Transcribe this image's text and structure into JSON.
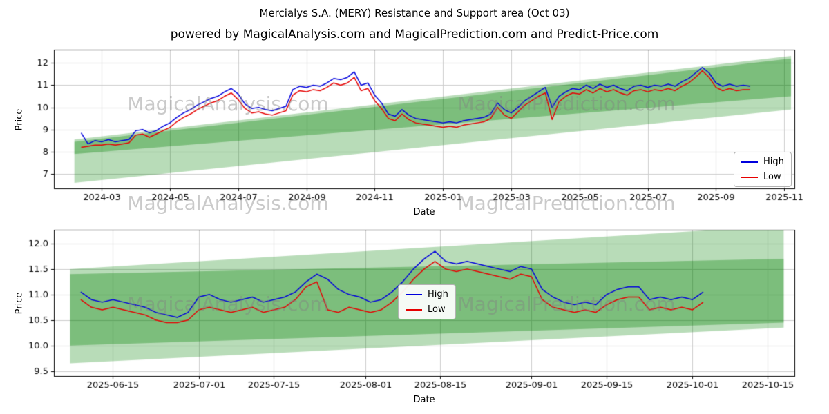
{
  "page": {
    "title": "Mercialys S.A. (MERY) Resistance and Support area (Oct 03)",
    "subtitle": "powered by MagicalAnalysis.com and MagicalPrediction.com and Predict-Price.com"
  },
  "watermarks": {
    "left": "MagicalAnalysis.com",
    "right": "MagicalPrediction.com"
  },
  "colors": {
    "high": "#0000dd",
    "low": "#e60000",
    "band": "#008000",
    "grid": "#cccccc",
    "axis": "#000000",
    "watermark": "#808080"
  },
  "chart_data": [
    {
      "type": "line",
      "title": "",
      "xlabel": "Date",
      "ylabel": "Price",
      "x_unit": "months-since-2024-01",
      "xlim": [
        0.6,
        22.3
      ],
      "ylim": [
        6.35,
        12.6
      ],
      "grid": true,
      "legend_position": "center-right",
      "yticks": [
        {
          "v": 7,
          "label": "7"
        },
        {
          "v": 8,
          "label": "8"
        },
        {
          "v": 9,
          "label": "9"
        },
        {
          "v": 10,
          "label": "10"
        },
        {
          "v": 11,
          "label": "11"
        },
        {
          "v": 12,
          "label": "12"
        }
      ],
      "xticks": [
        {
          "v": 2,
          "label": "2024-03"
        },
        {
          "v": 4,
          "label": "2024-05"
        },
        {
          "v": 6,
          "label": "2024-07"
        },
        {
          "v": 8,
          "label": "2024-09"
        },
        {
          "v": 10,
          "label": "2024-11"
        },
        {
          "v": 12,
          "label": "2025-01"
        },
        {
          "v": 14,
          "label": "2025-03"
        },
        {
          "v": 16,
          "label": "2025-05"
        },
        {
          "v": 18,
          "label": "2025-07"
        },
        {
          "v": 20,
          "label": "2025-09"
        },
        {
          "v": 22,
          "label": "2025-11"
        }
      ],
      "bands": [
        {
          "alpha": 0.28,
          "points": [
            [
              1.2,
              6.6
            ],
            [
              22.2,
              9.9
            ],
            [
              22.2,
              12.32
            ],
            [
              1.2,
              8.55
            ]
          ]
        },
        {
          "alpha": 0.33,
          "points": [
            [
              1.2,
              7.9
            ],
            [
              22.2,
              10.5
            ],
            [
              22.2,
              12.2
            ],
            [
              1.2,
              8.45
            ]
          ]
        }
      ],
      "series": [
        {
          "name": "High",
          "color": "#0000dd",
          "x0": 1.4,
          "dx": 0.2,
          "y": [
            8.85,
            8.35,
            8.5,
            8.45,
            8.55,
            8.45,
            8.5,
            8.55,
            8.95,
            9.0,
            8.85,
            8.95,
            9.15,
            9.3,
            9.55,
            9.75,
            9.9,
            10.1,
            10.25,
            10.4,
            10.5,
            10.7,
            10.85,
            10.6,
            10.15,
            9.95,
            10.0,
            9.9,
            9.85,
            9.95,
            10.05,
            10.8,
            10.95,
            10.9,
            11.0,
            10.95,
            11.1,
            11.3,
            11.25,
            11.35,
            11.6,
            11.0,
            11.1,
            10.55,
            10.2,
            9.7,
            9.6,
            9.9,
            9.65,
            9.5,
            9.45,
            9.4,
            9.35,
            9.3,
            9.35,
            9.3,
            9.4,
            9.45,
            9.5,
            9.55,
            9.7,
            10.2,
            9.9,
            9.75,
            10.0,
            10.3,
            10.5,
            10.7,
            10.9,
            10.0,
            10.5,
            10.7,
            10.85,
            10.8,
            11.0,
            10.85,
            11.05,
            10.9,
            11.0,
            10.85,
            10.75,
            10.95,
            11.0,
            10.9,
            11.0,
            10.95,
            11.05,
            10.95,
            11.15,
            11.3,
            11.55,
            11.8,
            11.55,
            11.1,
            10.95,
            11.05,
            10.95,
            11.0,
            10.95
          ]
        },
        {
          "name": "Low",
          "color": "#e60000",
          "x0": 1.4,
          "dx": 0.2,
          "y": [
            8.2,
            8.25,
            8.3,
            8.3,
            8.35,
            8.3,
            8.35,
            8.4,
            8.75,
            8.8,
            8.65,
            8.8,
            8.95,
            9.1,
            9.35,
            9.55,
            9.7,
            9.9,
            10.05,
            10.2,
            10.3,
            10.5,
            10.65,
            10.35,
            9.95,
            9.75,
            9.8,
            9.7,
            9.65,
            9.75,
            9.85,
            10.55,
            10.75,
            10.7,
            10.8,
            10.75,
            10.9,
            11.1,
            11.0,
            11.1,
            11.35,
            10.75,
            10.85,
            10.3,
            9.95,
            9.5,
            9.4,
            9.7,
            9.45,
            9.3,
            9.25,
            9.2,
            9.15,
            9.1,
            9.15,
            9.1,
            9.2,
            9.25,
            9.3,
            9.35,
            9.5,
            10.0,
            9.65,
            9.5,
            9.8,
            10.1,
            10.3,
            10.5,
            10.65,
            9.45,
            10.25,
            10.5,
            10.65,
            10.6,
            10.8,
            10.65,
            10.85,
            10.7,
            10.8,
            10.65,
            10.55,
            10.75,
            10.8,
            10.7,
            10.8,
            10.75,
            10.85,
            10.75,
            10.95,
            11.1,
            11.35,
            11.65,
            11.35,
            10.9,
            10.75,
            10.85,
            10.75,
            10.8,
            10.8
          ]
        }
      ]
    },
    {
      "type": "line",
      "title": "",
      "xlabel": "Date",
      "ylabel": "Price",
      "x_unit": "days-since-2025-06-01",
      "xlim": [
        3,
        141
      ],
      "ylim": [
        9.4,
        12.27
      ],
      "grid": true,
      "legend_position": "center",
      "yticks": [
        {
          "v": 9.5,
          "label": "9.5"
        },
        {
          "v": 10.0,
          "label": "10.0"
        },
        {
          "v": 10.5,
          "label": "10.5"
        },
        {
          "v": 11.0,
          "label": "11.0"
        },
        {
          "v": 11.5,
          "label": "11.5"
        },
        {
          "v": 12.0,
          "label": "12.0"
        }
      ],
      "xticks": [
        {
          "v": 14,
          "label": "2025-06-15"
        },
        {
          "v": 30,
          "label": "2025-07-01"
        },
        {
          "v": 44,
          "label": "2025-07-15"
        },
        {
          "v": 61,
          "label": "2025-08-01"
        },
        {
          "v": 75,
          "label": "2025-08-15"
        },
        {
          "v": 92,
          "label": "2025-09-01"
        },
        {
          "v": 106,
          "label": "2025-09-15"
        },
        {
          "v": 122,
          "label": "2025-10-01"
        },
        {
          "v": 136,
          "label": "2025-10-15"
        }
      ],
      "bands": [
        {
          "alpha": 0.28,
          "points": [
            [
              6,
              9.65
            ],
            [
              139,
              10.35
            ],
            [
              139,
              12.35
            ],
            [
              6,
              11.5
            ]
          ]
        },
        {
          "alpha": 0.33,
          "points": [
            [
              6,
              10.0
            ],
            [
              139,
              10.45
            ],
            [
              139,
              11.7
            ],
            [
              6,
              11.4
            ]
          ]
        }
      ],
      "series": [
        {
          "name": "High",
          "color": "#0000dd",
          "x0": 8,
          "dx": 2,
          "y": [
            11.05,
            10.9,
            10.85,
            10.9,
            10.85,
            10.8,
            10.75,
            10.65,
            10.6,
            10.55,
            10.65,
            10.95,
            11.0,
            10.9,
            10.85,
            10.9,
            10.95,
            10.85,
            10.9,
            10.95,
            11.05,
            11.25,
            11.4,
            11.3,
            11.1,
            11.0,
            10.95,
            10.85,
            10.9,
            11.05,
            11.25,
            11.5,
            11.7,
            11.85,
            11.65,
            11.6,
            11.65,
            11.6,
            11.55,
            11.5,
            11.45,
            11.55,
            11.5,
            11.1,
            10.95,
            10.85,
            10.8,
            10.85,
            10.8,
            11.0,
            11.1,
            11.15,
            11.15,
            10.9,
            10.95,
            10.9,
            10.95,
            10.9,
            11.05
          ]
        },
        {
          "name": "Low",
          "color": "#e60000",
          "x0": 8,
          "dx": 2,
          "y": [
            10.9,
            10.75,
            10.7,
            10.75,
            10.7,
            10.65,
            10.6,
            10.5,
            10.45,
            10.45,
            10.5,
            10.7,
            10.75,
            10.7,
            10.65,
            10.7,
            10.75,
            10.65,
            10.7,
            10.75,
            10.9,
            11.15,
            11.25,
            10.7,
            10.65,
            10.75,
            10.7,
            10.65,
            10.7,
            10.85,
            11.05,
            11.3,
            11.5,
            11.65,
            11.5,
            11.45,
            11.5,
            11.45,
            11.4,
            11.35,
            11.3,
            11.4,
            11.35,
            10.9,
            10.75,
            10.7,
            10.65,
            10.7,
            10.65,
            10.8,
            10.9,
            10.95,
            10.95,
            10.7,
            10.75,
            10.7,
            10.75,
            10.7,
            10.85
          ]
        }
      ]
    }
  ]
}
